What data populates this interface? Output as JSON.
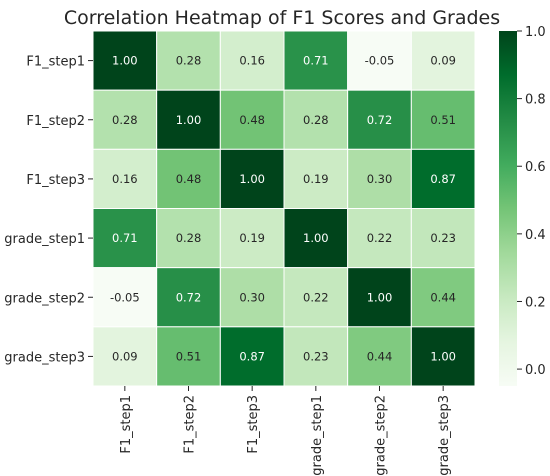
{
  "chart_data": {
    "type": "heatmap",
    "title": "Correlation Heatmap of F1 Scores and Grades",
    "x_categories": [
      "F1_step1",
      "F1_step2",
      "F1_step3",
      "grade_step1",
      "grade_step2",
      "grade_step3"
    ],
    "y_categories": [
      "F1_step1",
      "F1_step2",
      "F1_step3",
      "grade_step1",
      "grade_step2",
      "grade_step3"
    ],
    "values": [
      [
        1.0,
        0.28,
        0.16,
        0.71,
        -0.05,
        0.09
      ],
      [
        0.28,
        1.0,
        0.48,
        0.28,
        0.72,
        0.51
      ],
      [
        0.16,
        0.48,
        1.0,
        0.19,
        0.3,
        0.87
      ],
      [
        0.71,
        0.28,
        0.19,
        1.0,
        0.22,
        0.23
      ],
      [
        -0.05,
        0.72,
        0.3,
        0.22,
        1.0,
        0.44
      ],
      [
        0.09,
        0.51,
        0.87,
        0.23,
        0.44,
        1.0
      ]
    ],
    "value_format": "2 decimals",
    "colormap": "Greens",
    "color_range": [
      -0.05,
      1.0
    ],
    "colorbar_ticks": [
      0.0,
      0.2,
      0.4,
      0.6,
      0.8,
      1.0
    ],
    "colorbar_tick_labels": [
      "0.0",
      "0.2",
      "0.4",
      "0.6",
      "0.8",
      "1.0"
    ],
    "cell_border_color": "#ffffff",
    "grid": false
  }
}
